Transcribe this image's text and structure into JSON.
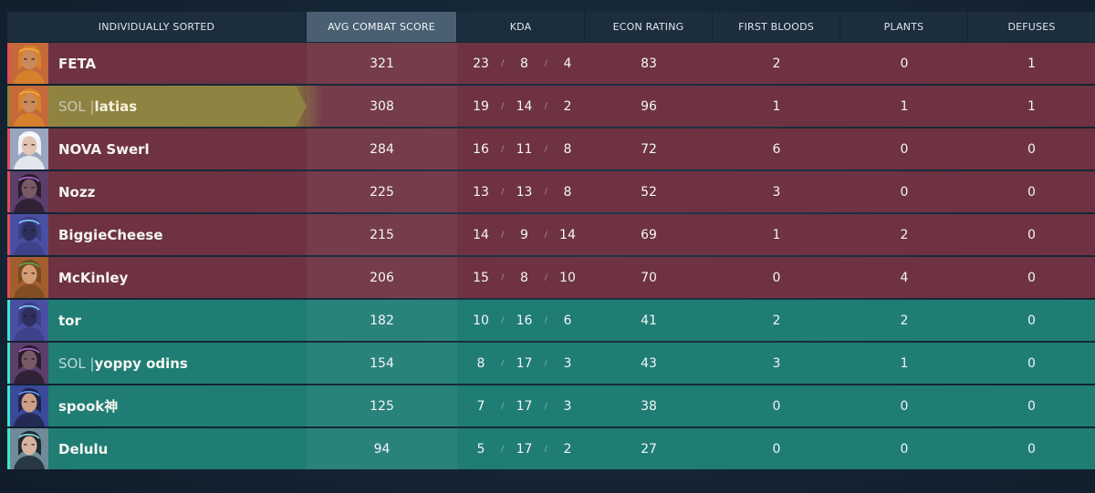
{
  "header": {
    "name": "INDIVIDUALLY SORTED",
    "acs": "AVG COMBAT SCORE",
    "kda": "KDA",
    "econ": "ECON RATING",
    "first_bloods": "FIRST BLOODS",
    "plants": "PLANTS",
    "defuses": "DEFUSES"
  },
  "kda_separator": "/",
  "players": [
    {
      "tag": "",
      "name": "FETA",
      "team": "red",
      "acs": "321",
      "k": "23",
      "d": "8",
      "a": "4",
      "econ": "83",
      "fb": "2",
      "plants": "0",
      "defuses": "1",
      "agent_icon": "agent-raze-icon"
    },
    {
      "tag": "SOL |",
      "name": "latias",
      "team": "self",
      "acs": "308",
      "k": "19",
      "d": "14",
      "a": "2",
      "econ": "96",
      "fb": "1",
      "plants": "1",
      "defuses": "1",
      "agent_icon": "agent-raze-icon"
    },
    {
      "tag": "",
      "name": "NOVA Swerl",
      "team": "red",
      "acs": "284",
      "k": "16",
      "d": "11",
      "a": "8",
      "econ": "72",
      "fb": "6",
      "plants": "0",
      "defuses": "0",
      "agent_icon": "agent-jett-icon"
    },
    {
      "tag": "",
      "name": "Nozz",
      "team": "red",
      "acs": "225",
      "k": "13",
      "d": "13",
      "a": "8",
      "econ": "52",
      "fb": "3",
      "plants": "0",
      "defuses": "0",
      "agent_icon": "agent-reyna-icon"
    },
    {
      "tag": "",
      "name": "BiggieCheese",
      "team": "red",
      "acs": "215",
      "k": "14",
      "d": "9",
      "a": "14",
      "econ": "69",
      "fb": "1",
      "plants": "2",
      "defuses": "0",
      "agent_icon": "agent-omen-icon"
    },
    {
      "tag": "",
      "name": "McKinley",
      "team": "red",
      "acs": "206",
      "k": "15",
      "d": "8",
      "a": "10",
      "econ": "70",
      "fb": "0",
      "plants": "4",
      "defuses": "0",
      "agent_icon": "agent-skye-icon"
    },
    {
      "tag": "",
      "name": "tor",
      "team": "green",
      "acs": "182",
      "k": "10",
      "d": "16",
      "a": "6",
      "econ": "41",
      "fb": "2",
      "plants": "2",
      "defuses": "0",
      "agent_icon": "agent-omen-icon"
    },
    {
      "tag": "SOL |",
      "name": "yoppy odins",
      "team": "green",
      "acs": "154",
      "k": "8",
      "d": "17",
      "a": "3",
      "econ": "43",
      "fb": "3",
      "plants": "1",
      "defuses": "0",
      "agent_icon": "agent-reyna-icon"
    },
    {
      "tag": "",
      "name": "spook神",
      "team": "green",
      "acs": "125",
      "k": "7",
      "d": "17",
      "a": "3",
      "econ": "38",
      "fb": "0",
      "plants": "0",
      "defuses": "0",
      "agent_icon": "agent-yoru-icon"
    },
    {
      "tag": "",
      "name": "Delulu",
      "team": "green",
      "acs": "94",
      "k": "5",
      "d": "17",
      "a": "2",
      "econ": "27",
      "fb": "0",
      "plants": "0",
      "defuses": "0",
      "agent_icon": "agent-sage-icon"
    }
  ],
  "colors": {
    "red_team": "#6e3242",
    "green_team": "#1f7d74",
    "self_row": "#8f8342",
    "active_header": "#4a6072"
  }
}
